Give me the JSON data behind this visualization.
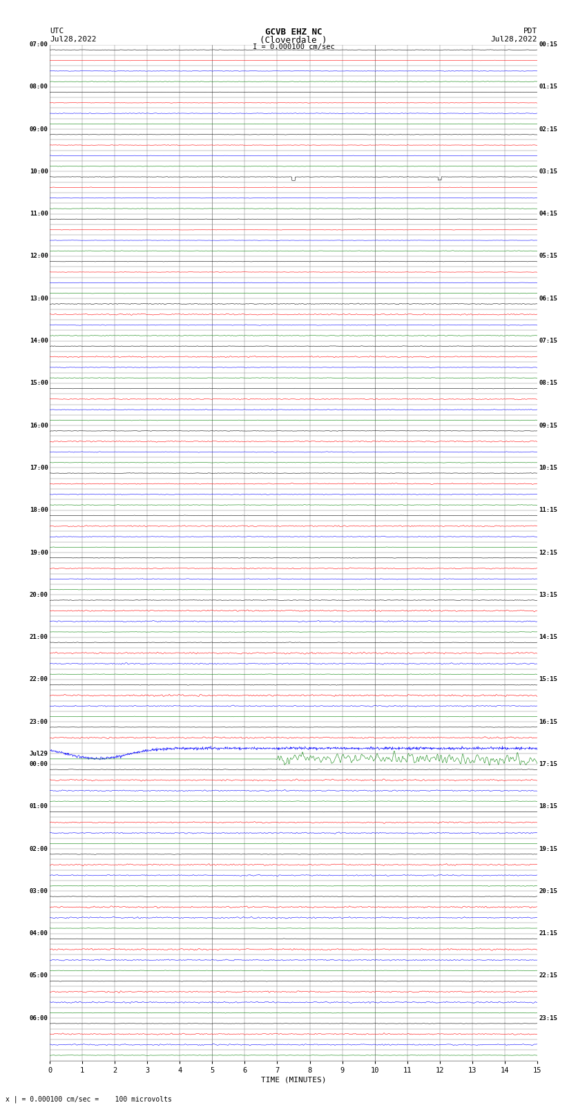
{
  "title_line1": "GCVB EHZ NC",
  "title_line2": "(Cloverdale )",
  "title_scale": "I = 0.000100 cm/sec",
  "left_label": "UTC",
  "left_date": "Jul28,2022",
  "right_label": "PDT",
  "right_date": "Jul28,2022",
  "xlabel": "TIME (MINUTES)",
  "bottom_note": "x | = 0.000100 cm/sec =    100 microvolts",
  "bg_color": "#ffffff",
  "grid_color": "#888888",
  "trace_colors": [
    "black",
    "red",
    "blue",
    "green"
  ],
  "num_rows": 96,
  "figsize": [
    8.5,
    16.13
  ],
  "dpi": 100,
  "left_times": [
    [
      "07:00",
      0
    ],
    [
      "08:00",
      4
    ],
    [
      "09:00",
      8
    ],
    [
      "10:00",
      12
    ],
    [
      "11:00",
      16
    ],
    [
      "12:00",
      20
    ],
    [
      "13:00",
      24
    ],
    [
      "14:00",
      28
    ],
    [
      "15:00",
      32
    ],
    [
      "16:00",
      36
    ],
    [
      "17:00",
      40
    ],
    [
      "18:00",
      44
    ],
    [
      "19:00",
      48
    ],
    [
      "20:00",
      52
    ],
    [
      "21:00",
      56
    ],
    [
      "22:00",
      60
    ],
    [
      "23:00",
      64
    ],
    [
      "Jul29",
      67
    ],
    [
      "00:00",
      68
    ],
    [
      "01:00",
      72
    ],
    [
      "02:00",
      76
    ],
    [
      "03:00",
      80
    ],
    [
      "04:00",
      84
    ],
    [
      "05:00",
      88
    ],
    [
      "06:00",
      92
    ]
  ],
  "right_times": [
    [
      "00:15",
      0
    ],
    [
      "01:15",
      4
    ],
    [
      "02:15",
      8
    ],
    [
      "03:15",
      12
    ],
    [
      "04:15",
      16
    ],
    [
      "05:15",
      20
    ],
    [
      "06:15",
      24
    ],
    [
      "07:15",
      28
    ],
    [
      "08:15",
      32
    ],
    [
      "09:15",
      36
    ],
    [
      "10:15",
      40
    ],
    [
      "11:15",
      44
    ],
    [
      "12:15",
      48
    ],
    [
      "13:15",
      52
    ],
    [
      "14:15",
      56
    ],
    [
      "15:15",
      60
    ],
    [
      "16:15",
      64
    ],
    [
      "17:15",
      68
    ],
    [
      "18:15",
      72
    ],
    [
      "19:15",
      76
    ],
    [
      "20:15",
      80
    ],
    [
      "21:15",
      84
    ],
    [
      "22:15",
      88
    ],
    [
      "23:15",
      92
    ]
  ]
}
